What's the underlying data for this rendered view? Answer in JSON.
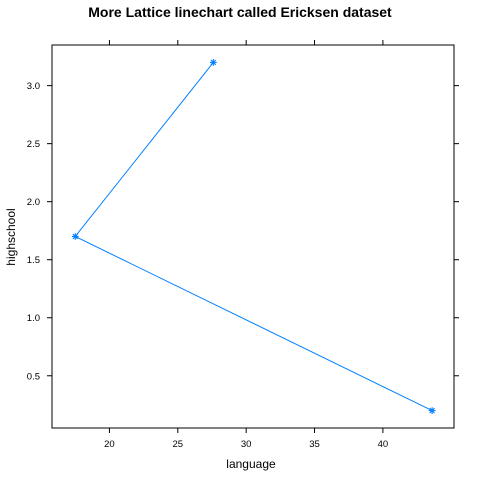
{
  "chart_data": {
    "type": "line",
    "title": "More Lattice linechart called Ericksen dataset",
    "xlabel": "language",
    "ylabel": "highschool",
    "xlim": [
      15.8,
      45.2
    ],
    "ylim": [
      0.05,
      3.35
    ],
    "x_ticks": [
      20,
      25,
      30,
      35,
      40
    ],
    "y_ticks": [
      0.5,
      1.0,
      1.5,
      2.0,
      2.5,
      3.0
    ],
    "x_tick_labels": [
      "20",
      "25",
      "30",
      "35",
      "40"
    ],
    "y_tick_labels": [
      "0.5",
      "1.0",
      "1.5",
      "2.0",
      "2.5",
      "3.0"
    ],
    "grid": false,
    "series": [
      {
        "x": [
          27.6,
          17.5,
          43.6
        ],
        "y": [
          3.2,
          1.7,
          0.2
        ],
        "color": "#0080ff",
        "marker": "asterisk"
      }
    ]
  }
}
